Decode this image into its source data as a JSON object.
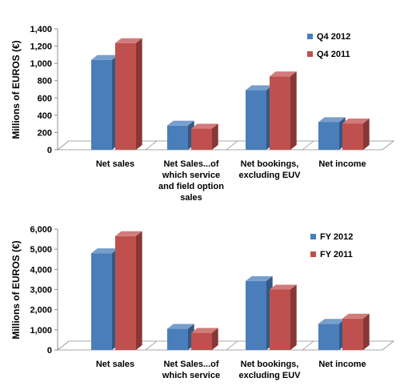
{
  "chart_data": [
    {
      "type": "bar",
      "ylabel": "Millions of EUROS (€)",
      "categories": [
        [
          "Net sales"
        ],
        [
          "Net Sales...of",
          "which service",
          "and field option",
          "sales"
        ],
        [
          "Net bookings,",
          "excluding EUV"
        ],
        [
          "Net income"
        ]
      ],
      "series": [
        {
          "name": "Q4 2012",
          "values": [
            1040,
            280,
            690,
            320
          ]
        },
        {
          "name": "Q4 2011",
          "values": [
            1235,
            245,
            850,
            305
          ]
        }
      ],
      "ylim": [
        0,
        1400
      ],
      "yticks": [
        0,
        200,
        400,
        600,
        800,
        1000,
        1200,
        1400
      ],
      "ytick_labels": [
        "0",
        "200",
        "400",
        "600",
        "800",
        "1,000",
        "1,200",
        "1,400"
      ],
      "colors": [
        "#4a7ebb",
        "#c0504d"
      ],
      "legend": "right",
      "grid": false
    },
    {
      "type": "bar",
      "ylabel": "Millions of EUROS (€)",
      "categories": [
        [
          "Net sales"
        ],
        [
          "Net Sales...of",
          "which service"
        ],
        [
          "Net bookings,",
          "excluding EUV"
        ],
        [
          "Net income"
        ]
      ],
      "series": [
        {
          "name": "FY 2012",
          "values": [
            4800,
            1050,
            3420,
            1300
          ]
        },
        {
          "name": "FY 2011",
          "values": [
            5650,
            850,
            3000,
            1560
          ]
        }
      ],
      "ylim": [
        0,
        6000
      ],
      "yticks": [
        0,
        1000,
        2000,
        3000,
        4000,
        5000,
        6000
      ],
      "ytick_labels": [
        "0",
        "1,000",
        "2,000",
        "3,000",
        "4,000",
        "5,000",
        "6,000"
      ],
      "colors": [
        "#4a7ebb",
        "#c0504d"
      ],
      "legend": "right",
      "grid": false
    }
  ]
}
